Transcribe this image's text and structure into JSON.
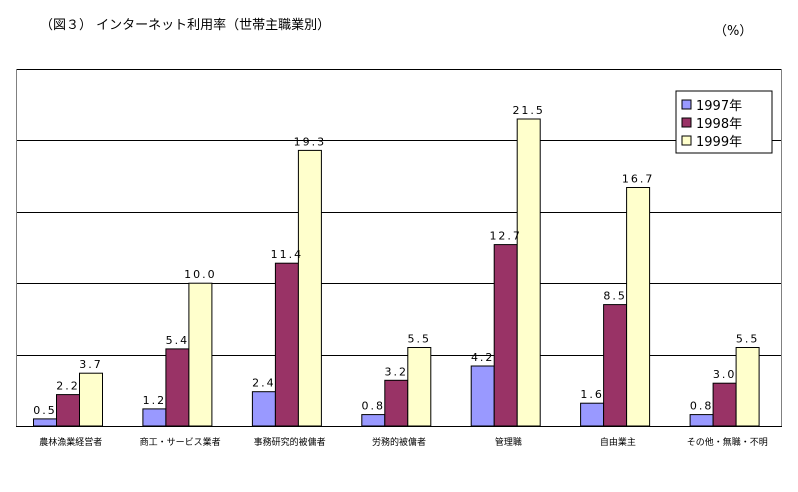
{
  "title": "（図３） インターネット利用率（世帯主職業別）",
  "unit": "（%）",
  "colors": {
    "series_1997": "#9999ff",
    "series_1998": "#993366",
    "series_1999": "#ffffcc",
    "gridline": "#000000",
    "axis": "#808080"
  },
  "chart_data": {
    "type": "bar",
    "categories": [
      "農林漁業経営者",
      "商工・サービス業者",
      "事務研究的被傭者",
      "労務的被傭者",
      "管理職",
      "自由業主",
      "その他・無職・不明"
    ],
    "series": [
      {
        "name": "1997年",
        "values": [
          0.5,
          1.2,
          2.4,
          0.8,
          4.2,
          1.6,
          0.8
        ]
      },
      {
        "name": "1998年",
        "values": [
          2.2,
          5.4,
          11.4,
          3.2,
          12.7,
          8.5,
          3.0
        ]
      },
      {
        "name": "1999年",
        "values": [
          3.7,
          10.0,
          19.3,
          5.5,
          21.5,
          16.7,
          5.5
        ]
      }
    ],
    "value_labels": [
      [
        "0.5",
        "1.2",
        "2.4",
        "0.8",
        "4.2",
        "1.6",
        "0.8"
      ],
      [
        "2.2",
        "5.4",
        "11.4",
        "3.2",
        "12.7",
        "8.5",
        "3.0"
      ],
      [
        "3.7",
        "10.0",
        "19.3",
        "5.5",
        "21.5",
        "16.7",
        "5.5"
      ]
    ],
    "ylim": [
      0,
      25
    ],
    "gridlines": [
      5,
      10,
      15,
      20,
      25
    ],
    "legend_position": "top-right"
  }
}
